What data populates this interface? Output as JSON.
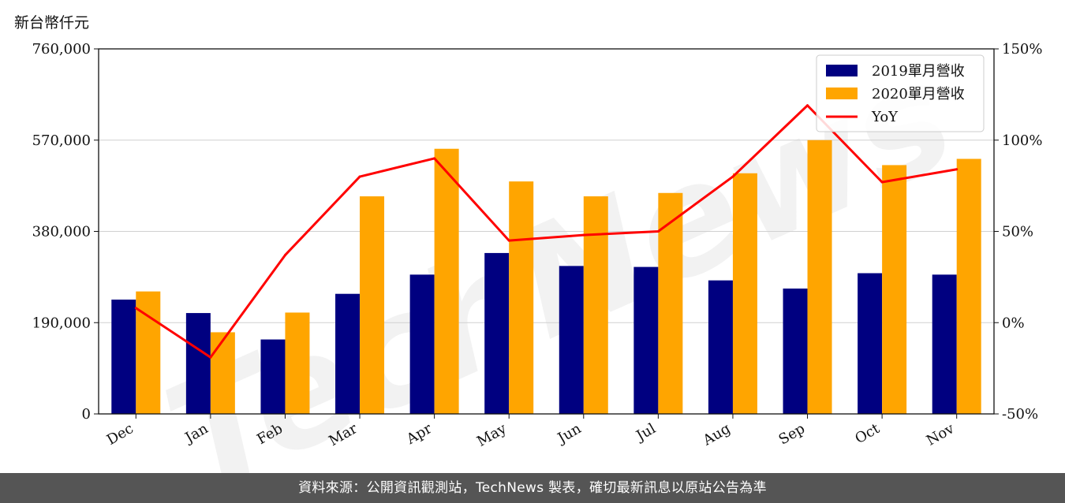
{
  "unit_label": "新台幣仟元",
  "footer_text": "資料來源：公開資訊觀測站，TechNews 製表，確切最新訊息以原站公告為準",
  "watermark_text": "TechNews",
  "chart_data": {
    "type": "bar",
    "categories": [
      "Dec",
      "Jan",
      "Feb",
      "Mar",
      "Apr",
      "May",
      "Jun",
      "Jul",
      "Aug",
      "Sep",
      "Oct",
      "Nov"
    ],
    "series": [
      {
        "name": "2019單月營收",
        "type": "bar",
        "color": "#000080",
        "values": [
          238000,
          210000,
          155000,
          250000,
          290000,
          335000,
          308000,
          306000,
          278000,
          261000,
          293000,
          290000
        ]
      },
      {
        "name": "2020單月營收",
        "type": "bar",
        "color": "#FFA500",
        "values": [
          255000,
          170000,
          211000,
          453000,
          552000,
          484000,
          453000,
          460000,
          501000,
          570000,
          518000,
          531000
        ]
      },
      {
        "name": "YoY",
        "type": "line",
        "axis": "right",
        "color": "#FF0000",
        "values": [
          8,
          -19,
          37,
          80,
          90,
          45,
          48,
          50,
          80,
          119,
          77,
          84
        ]
      }
    ],
    "ylim": [
      0,
      760000
    ],
    "yticks": [
      "0",
      "190,000",
      "380,000",
      "570,000",
      "760,000"
    ],
    "y2lim": [
      -50,
      150
    ],
    "y2ticks": [
      "-50%",
      "0%",
      "50%",
      "100%",
      "150%"
    ],
    "grid": true,
    "legend": "top-right",
    "ylabel": "新台幣仟元"
  }
}
